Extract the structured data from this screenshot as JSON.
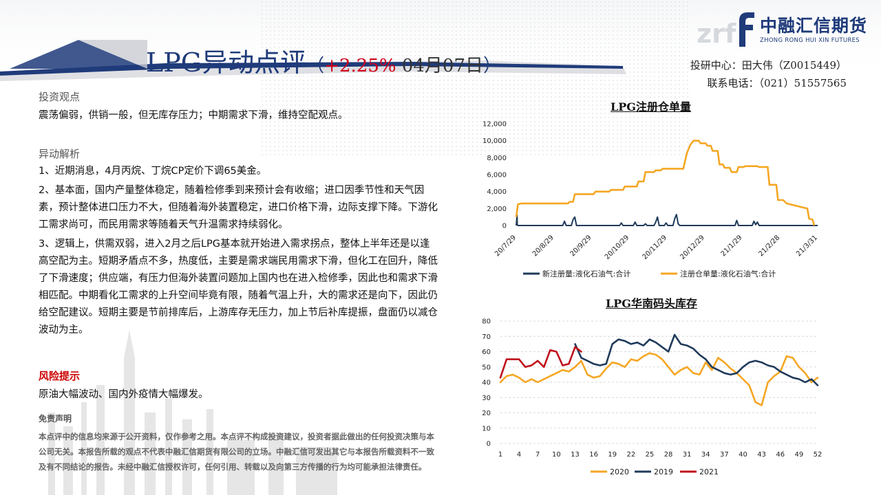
{
  "header": {
    "title_main": "LPG异动点评",
    "paren_open": "（",
    "pct_change": "+2.25%",
    "date": " 04月07日",
    "paren_close": "）",
    "contact_line1": "投研中心：田大伟（Z0015449）",
    "contact_line2": "联系电话：（021）51557565"
  },
  "logo": {
    "name_cn": "中融汇信期货",
    "name_en": "ZHONG RONG HUI XIN FUTURES",
    "watermark": "zrf",
    "color": "#1f3b7a"
  },
  "left": {
    "view_label": "投资观点",
    "view_text": "震荡偏弱，供销一般，但无库存压力；中期需求下滑，维持空配观点。",
    "analysis_label": "异动解析",
    "analysis_items": [
      "1、近期消息，4月丙烷、丁烷CP定价下调65美金。",
      "2、基本面，国内产量整体稳定，随着检修季到来预计会有收缩；进口因季节性和天气因素，预计整体进口压力不大，但随着海外装置稳定，进口价格下滑，边际支撑下降。下游化工需求尚可，而民用需求等随着天气升温需求持续弱化。",
      "3、逻辑上，供需双弱，进入2月之后LPG基本就开始进入需求拐点，整体上半年还是以逢高空配为主。短期矛盾点不多，热度低，主要是需求端民用需求下滑，但化工在回升，降低了下滑速度；供应端，有压力但海外装置问题加上国内也在进入检修季，因此也和需求下滑相匹配。中期看化工需求的上升空间毕竟有限，随着气温上升，大的需求还是向下，因此仍给空配建议。短期主要是节前排库后，上游库存无压力，加上节后补库提振，盘面仍以减仓波动为主。"
    ],
    "risk_label": "风险提示",
    "risk_text": "原油大幅波动、国内外疫情大幅爆发。",
    "disclaimer_title": "免责声明",
    "disclaimer_text": "本点评中的信息均来源于公开资料，仅作参考之用。本点评不构成投资建议，投资者据此做出的任何投资决策与本公司无关。本报告所载的观点不代表中融汇信期货有限公司的立场。中融汇信可发出其它与本报告所载资料不一致及有不同结论的报告。未经中融汇信授权许可，任何引用、转载以及向第三方传播的行为均可能承担法律责任。"
  },
  "chart_data": [
    {
      "type": "line",
      "title": "LPG注册仓单量",
      "xlabel": "",
      "ylabel": "",
      "ylim": [
        0,
        12000
      ],
      "yticks": [
        "12,000",
        "10,000",
        "8,000",
        "6,000",
        "4,000",
        "2,000",
        "0"
      ],
      "xticks": [
        "20/7/29",
        "20/8/29",
        "20/9/29",
        "20/10/29",
        "20/11/29",
        "20/12/29",
        "21/1/29",
        "21/2/28",
        "21/3/31"
      ],
      "legend_position": "bottom",
      "series": [
        {
          "name": "新注册量:液化石油气:合计",
          "color": "#1f3a5a",
          "points": [
            [
              0,
              0
            ],
            [
              0.5,
              1200
            ],
            [
              0.6,
              100
            ],
            [
              1,
              0
            ],
            [
              27,
              0
            ],
            [
              28,
              500
            ],
            [
              29,
              0
            ],
            [
              32,
              0
            ],
            [
              33,
              700
            ],
            [
              34,
              1000
            ],
            [
              35,
              0
            ],
            [
              60,
              0
            ],
            [
              61,
              300
            ],
            [
              62,
              0
            ],
            [
              68,
              0
            ],
            [
              69,
              400
            ],
            [
              70,
              0
            ],
            [
              74,
              0
            ],
            [
              75,
              200
            ],
            [
              76,
              0
            ],
            [
              80,
              0
            ],
            [
              81,
              400
            ],
            [
              82,
              1000
            ],
            [
              83,
              0
            ],
            [
              86,
              0
            ],
            [
              87,
              300
            ],
            [
              88,
              0
            ],
            [
              91,
              0
            ],
            [
              92,
              800
            ],
            [
              93,
              1300
            ],
            [
              94,
              200
            ],
            [
              95,
              0
            ],
            [
              127,
              0
            ],
            [
              128,
              600
            ],
            [
              129,
              0
            ],
            [
              137,
              0
            ],
            [
              138,
              500
            ],
            [
              139,
              100
            ],
            [
              140,
              400
            ],
            [
              141,
              0
            ],
            [
              175,
              0
            ]
          ]
        },
        {
          "name": "注册仓单量:液化石油气:合计",
          "color": "#f5a623",
          "points": [
            [
              0,
              1000
            ],
            [
              1,
              2500
            ],
            [
              3,
              2600
            ],
            [
              30,
              2600
            ],
            [
              31,
              2800
            ],
            [
              33,
              2800
            ],
            [
              34,
              3700
            ],
            [
              45,
              3700
            ],
            [
              46,
              4000
            ],
            [
              54,
              4000
            ],
            [
              55,
              4200
            ],
            [
              62,
              4200
            ],
            [
              63,
              4600
            ],
            [
              70,
              4600
            ],
            [
              71,
              5200
            ],
            [
              74,
              5200
            ],
            [
              75,
              6300
            ],
            [
              80,
              6300
            ],
            [
              81,
              6500
            ],
            [
              84,
              6500
            ],
            [
              85,
              6700
            ],
            [
              97,
              6700
            ],
            [
              99,
              8500
            ],
            [
              101,
              9500
            ],
            [
              103,
              10000
            ],
            [
              106,
              10000
            ],
            [
              107,
              9700
            ],
            [
              110,
              9700
            ],
            [
              111,
              9400
            ],
            [
              113,
              9400
            ],
            [
              114,
              8800
            ],
            [
              117,
              8800
            ],
            [
              118,
              7200
            ],
            [
              120,
              7200
            ],
            [
              121,
              6800
            ],
            [
              124,
              6800
            ],
            [
              125,
              6300
            ],
            [
              128,
              6300
            ],
            [
              129,
              6900
            ],
            [
              132,
              6900
            ],
            [
              133,
              7000
            ],
            [
              140,
              7000
            ],
            [
              141,
              6900
            ],
            [
              146,
              6900
            ],
            [
              147,
              4800
            ],
            [
              151,
              4800
            ],
            [
              152,
              3000
            ],
            [
              155,
              3000
            ],
            [
              157,
              2600
            ],
            [
              163,
              2300
            ],
            [
              167,
              2100
            ],
            [
              169,
              2000
            ],
            [
              170,
              800
            ],
            [
              172,
              700
            ],
            [
              173,
              0
            ]
          ]
        }
      ]
    },
    {
      "type": "line",
      "title": "LPG华南码头库存",
      "xlabel": "",
      "ylabel": "",
      "ylim": [
        0,
        80
      ],
      "yticks": [
        "80",
        "70",
        "60",
        "50",
        "40",
        "30",
        "20",
        "10",
        "0"
      ],
      "xticks": [
        "1",
        "4",
        "7",
        "10",
        "13",
        "16",
        "19",
        "22",
        "25",
        "28",
        "31",
        "34",
        "37",
        "40",
        "43",
        "46",
        "49",
        "52"
      ],
      "legend_position": "bottom",
      "series": [
        {
          "name": "2020",
          "color": "#f5a623",
          "x": [
            1,
            2,
            3,
            4,
            5,
            6,
            7,
            8,
            9,
            10,
            11,
            12,
            13,
            14,
            15,
            16,
            17,
            18,
            19,
            20,
            21,
            22,
            23,
            24,
            25,
            26,
            27,
            28,
            29,
            30,
            31,
            32,
            33,
            34,
            35,
            36,
            37,
            38,
            39,
            40,
            41,
            42,
            43,
            44,
            45,
            46,
            47,
            48,
            49,
            50,
            51,
            52
          ],
          "values": [
            40,
            44,
            45,
            43,
            40,
            42,
            40,
            42,
            44,
            46,
            48,
            47,
            50,
            54,
            45,
            43,
            44,
            49,
            53,
            52,
            50,
            55,
            54,
            57,
            59,
            58,
            55,
            50,
            45,
            48,
            50,
            46,
            45,
            53,
            48,
            56,
            53,
            49,
            46,
            42,
            38,
            27,
            25,
            40,
            44,
            47,
            57,
            56,
            50,
            46,
            40,
            43
          ]
        },
        {
          "name": "2019",
          "color": "#1f3a5a",
          "x": [
            13,
            14,
            15,
            16,
            17,
            18,
            19,
            20,
            21,
            22,
            23,
            24,
            25,
            26,
            27,
            28,
            29,
            30,
            31,
            32,
            33,
            34,
            35,
            36,
            37,
            38,
            39,
            40,
            41,
            42,
            43,
            44,
            45,
            46,
            47,
            48,
            49,
            50,
            51,
            52
          ],
          "values": [
            65,
            56,
            54,
            52,
            51,
            52,
            65,
            68,
            67,
            65,
            66,
            64,
            68,
            66,
            63,
            60,
            71,
            65,
            64,
            62,
            58,
            55,
            50,
            48,
            46,
            45,
            46,
            50,
            53,
            54,
            53,
            51,
            50,
            47,
            45,
            43,
            42,
            40,
            42,
            38
          ]
        },
        {
          "name": "2021",
          "color": "#c0101a",
          "x": [
            1,
            2,
            3,
            4,
            5,
            6,
            7,
            8,
            9,
            10,
            11,
            12,
            13,
            14
          ],
          "values": [
            43,
            55,
            55,
            55,
            50,
            51,
            54,
            50,
            61,
            60,
            51,
            52,
            63,
            60
          ]
        }
      ]
    }
  ]
}
